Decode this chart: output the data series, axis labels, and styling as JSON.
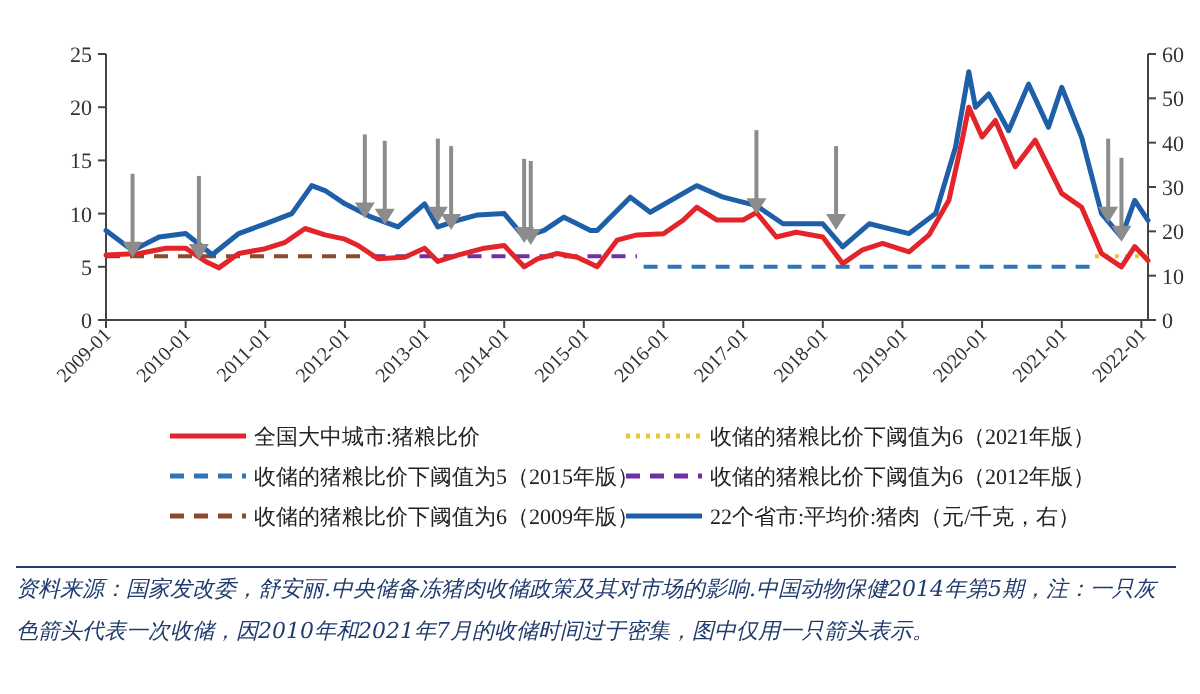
{
  "chart_data": {
    "type": "line",
    "xlim": [
      "2009-01",
      "2022-02"
    ],
    "xticks": [
      {
        "value": "2009-01",
        "label": "2009-01"
      },
      {
        "value": "2010-01",
        "label": "2010-01"
      },
      {
        "value": "2011-01",
        "label": "2011-01"
      },
      {
        "value": "2012-01",
        "label": "2012-01"
      },
      {
        "value": "2013-01",
        "label": "2013-01"
      },
      {
        "value": "2014-01",
        "label": "2014-01"
      },
      {
        "value": "2015-01",
        "label": "2015-01"
      },
      {
        "value": "2016-01",
        "label": "2016-01"
      },
      {
        "value": "2017-01",
        "label": "2017-01"
      },
      {
        "value": "2018-01",
        "label": "2018-01"
      },
      {
        "value": "2019-01",
        "label": "2019-01"
      },
      {
        "value": "2020-01",
        "label": "2020-01"
      },
      {
        "value": "2021-01",
        "label": "2021-01"
      },
      {
        "value": "2022-01",
        "label": "2022-01"
      }
    ],
    "ylim": [
      0,
      25
    ],
    "yticks": [
      0,
      5,
      10,
      15,
      20,
      25
    ],
    "y2lim": [
      0,
      60
    ],
    "y2ticks": [
      0,
      10,
      20,
      30,
      40,
      50,
      60
    ],
    "legend": "bottom",
    "grid": false,
    "series": [
      {
        "name": "全国大中城市:猪粮比价",
        "color": "#e3242b",
        "line_style": "solid",
        "x": [
          "2009-01",
          "2009-06",
          "2009-10",
          "2010-01",
          "2010-04",
          "2010-06",
          "2010-09",
          "2011-01",
          "2011-04",
          "2011-07",
          "2011-10",
          "2012-01",
          "2012-03",
          "2012-06",
          "2012-10",
          "2013-01",
          "2013-03",
          "2013-06",
          "2013-10",
          "2014-01",
          "2014-04",
          "2014-06",
          "2014-09",
          "2014-12",
          "2015-02",
          "2015-03",
          "2015-06",
          "2015-09",
          "2016-01",
          "2016-04",
          "2016-06",
          "2016-09",
          "2017-01",
          "2017-03",
          "2017-06",
          "2017-09",
          "2018-01",
          "2018-04",
          "2018-07",
          "2018-10",
          "2019-02",
          "2019-05",
          "2019-08",
          "2019-10",
          "2019-11",
          "2020-01",
          "2020-03",
          "2020-06",
          "2020-09",
          "2021-01",
          "2021-04",
          "2021-07",
          "2021-10",
          "2021-12",
          "2022-02"
        ],
        "values": [
          6.1,
          6.25,
          6.75,
          6.75,
          5.5,
          4.9,
          6.25,
          6.7,
          7.3,
          8.6,
          8.0,
          7.6,
          7.0,
          5.75,
          5.9,
          6.75,
          5.5,
          6.1,
          6.75,
          7.0,
          5.0,
          5.75,
          6.25,
          5.9,
          5.3,
          5.0,
          7.5,
          8.0,
          8.1,
          9.4,
          10.6,
          9.4,
          9.4,
          10.1,
          7.8,
          8.25,
          7.8,
          5.3,
          6.6,
          7.2,
          6.4,
          8.0,
          11.25,
          16.9,
          20.0,
          17.2,
          18.75,
          14.4,
          16.9,
          11.9,
          10.6,
          6.25,
          5.0,
          6.9,
          5.6
        ]
      },
      {
        "name": "收储的猪粮比价下阈值为6（2021年版）",
        "color": "#e6c832",
        "line_style": "dotted",
        "x": [
          "2021-06",
          "2022-02"
        ],
        "values": [
          6,
          6
        ]
      },
      {
        "name": "收储的猪粮比价下阈值为5（2015年版）",
        "color": "#2e75b6",
        "line_style": "dashed",
        "x": [
          "2015-10",
          "2021-06"
        ],
        "values": [
          5,
          5
        ]
      },
      {
        "name": "收储的猪粮比价下阈值为6（2012年版）",
        "color": "#7030a0",
        "line_style": "dashed",
        "x": [
          "2012-05",
          "2015-09"
        ],
        "values": [
          6,
          6
        ]
      },
      {
        "name": "收储的猪粮比价下阈值为6（2009年版）",
        "color": "#8b4a2b",
        "line_style": "dashed",
        "x": [
          "2009-01",
          "2012-04"
        ],
        "values": [
          6,
          6
        ]
      },
      {
        "name": "22个省市:平均价:猪肉（元/千克，右）",
        "color": "#1f5fa8",
        "line_style": "solid",
        "axis": "y2",
        "x": [
          "2009-01",
          "2009-05",
          "2009-09",
          "2010-01",
          "2010-05",
          "2010-09",
          "2011-01",
          "2011-05",
          "2011-08",
          "2011-10",
          "2012-01",
          "2012-05",
          "2012-09",
          "2013-01",
          "2013-03",
          "2013-06",
          "2013-09",
          "2014-01",
          "2014-04",
          "2014-07",
          "2014-10",
          "2015-02",
          "2015-03",
          "2015-08",
          "2015-11",
          "2016-06",
          "2016-10",
          "2017-03",
          "2017-07",
          "2018-01",
          "2018-04",
          "2018-08",
          "2019-02",
          "2019-06",
          "2019-09",
          "2019-11",
          "2019-12",
          "2020-02",
          "2020-05",
          "2020-08",
          "2020-11",
          "2021-01",
          "2021-04",
          "2021-07",
          "2021-10",
          "2021-12",
          "2022-02"
        ],
        "values": [
          20.2,
          15.7,
          18.7,
          19.5,
          14.7,
          19.5,
          21.7,
          24,
          30.3,
          29.2,
          26.2,
          23.2,
          21,
          26.2,
          21,
          22.5,
          23.7,
          24,
          18.7,
          20.2,
          23.2,
          20.2,
          20.2,
          27.7,
          24.3,
          30.3,
          27.7,
          25.8,
          21.7,
          21.7,
          16.5,
          21.7,
          19.5,
          24,
          39,
          56,
          48,
          51,
          42.7,
          53.2,
          43.5,
          52.5,
          41.2,
          24,
          18.7,
          27,
          22.5
        ]
      },
      {
        "type": "scatter",
        "marker": "triangle",
        "color": "#8c8c8c",
        "x": [
          "2009-05",
          "2010-03",
          "2012-04",
          "2012-07",
          "2013-03",
          "2013-05",
          "2014-04",
          "2014-05",
          "2017-03",
          "2018-03",
          "2021-08",
          "2021-10"
        ],
        "values": [
          6.6,
          6.4,
          10.3,
          9.7,
          9.9,
          9.2,
          8.0,
          7.8,
          10.7,
          9.2,
          9.9,
          8.1
        ]
      }
    ],
    "annotations": [
      "资料来源：国家发改委，舒安丽.中央储备冻猪肉收储政策及其对市场的影响.中国动物保健2014年第5期，注：一只灰色箭头代表一次收储，因2010年和2021年7月的收储时间过于密集，图中仅用一只箭头表示。"
    ]
  }
}
